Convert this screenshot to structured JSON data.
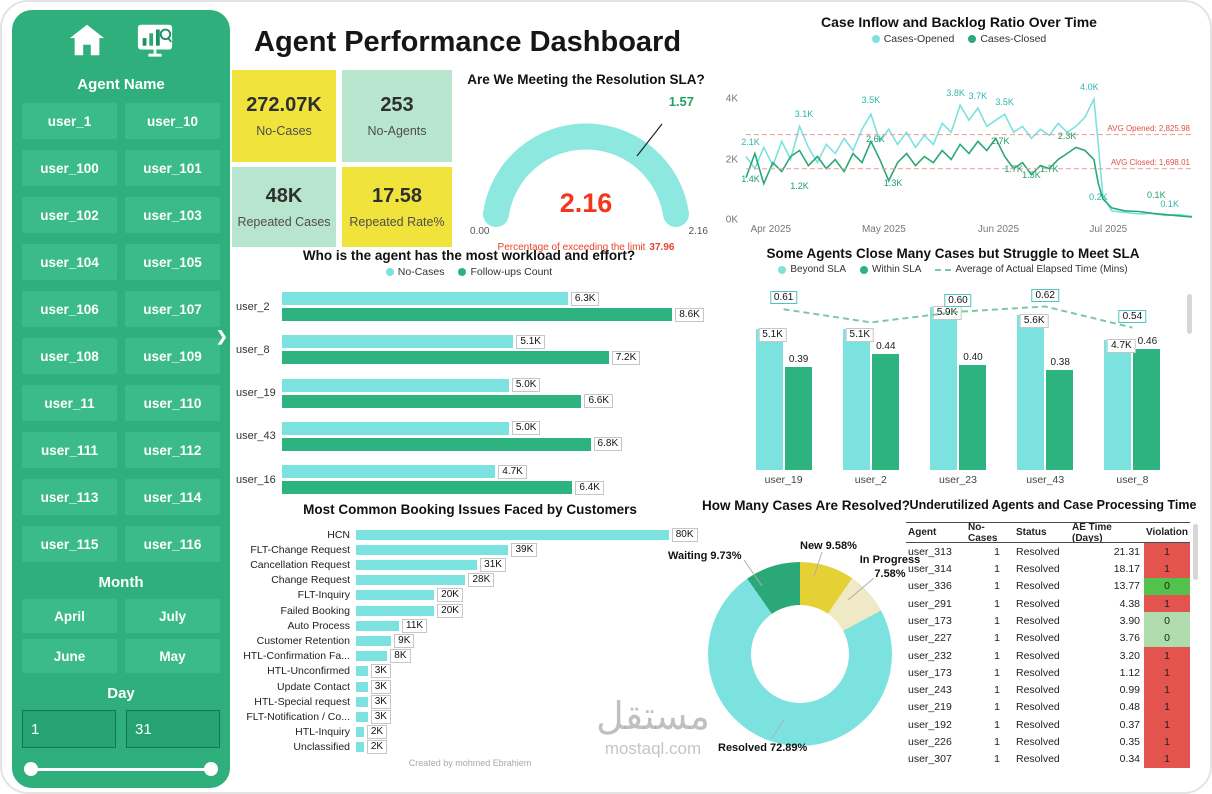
{
  "app": {
    "title": "Agent Performance Dashboard",
    "credit": "Created by mohmed Ebrahiem",
    "watermark_arabic": "مستقل",
    "watermark_latin": "mostaql.com"
  },
  "icons": {
    "collapse": "❯"
  },
  "colors": {
    "sidebar_green": "#2EAF7C",
    "button_green": "#3ABB87",
    "teal": "#7CE2DF",
    "green": "#2AA878",
    "bar_green": "#2CB380",
    "yellow": "#F0E33C",
    "mint": "#B7E5CE",
    "gauge_arc": "#8DE8E0",
    "red_value": "#F4371C",
    "avg_line": "#F09A93",
    "avg_label": "#E05045",
    "sla_line": "#7CC9A0",
    "table_red": "#E4544F",
    "table_green": "#52C24C",
    "table_lightgreen": "#AEDCAC",
    "cream": "#EFE9C5"
  },
  "sidebar": {
    "agent_header": "Agent Name",
    "agents": [
      "user_1",
      "user_10",
      "user_100",
      "user_101",
      "user_102",
      "user_103",
      "user_104",
      "user_105",
      "user_106",
      "user_107",
      "user_108",
      "user_109",
      "user_11",
      "user_110",
      "user_111",
      "user_112",
      "user_113",
      "user_114",
      "user_115",
      "user_116"
    ],
    "month_header": "Month",
    "months": [
      "April",
      "July",
      "June",
      "May"
    ],
    "day_header": "Day",
    "day_from": "1",
    "day_to": "31"
  },
  "kpis": [
    {
      "value": "272.07K",
      "label": "No-Cases",
      "style": "yellow"
    },
    {
      "value": "253",
      "label": "No-Agents",
      "style": "mint"
    },
    {
      "value": "48K",
      "label": "Repeated Cases",
      "style": "mint"
    },
    {
      "value": "17.58",
      "label": "Repeated Rate%",
      "style": "yellow"
    }
  ],
  "chart_data": [
    {
      "id": "sla_gauge",
      "type": "gauge",
      "title": "Are We Meeting the Resolution SLA?",
      "value": "2.16",
      "min": "0.00",
      "max": "2.16",
      "target": "1.57",
      "note": "Percentage of exceeding the limit",
      "note_value": "37.96"
    },
    {
      "id": "case_inflow",
      "type": "line",
      "title": "Case Inflow and Backlog Ratio Over Time",
      "legend": [
        "Cases-Opened",
        "Cases-Closed"
      ],
      "ymax": 4.3,
      "y_ticks": [
        "4K",
        "2K",
        "0K"
      ],
      "y_tick_values": [
        4,
        2,
        0
      ],
      "x_ticks": [
        "Apr 2025",
        "May 2025",
        "Jun 2025",
        "Jul 2025"
      ],
      "x_tick_pos": [
        1,
        26,
        52,
        77
      ],
      "avg_lines": [
        {
          "label": "AVG Opened: 2,825.98",
          "value": 2.826
        },
        {
          "label": "AVG Closed: 1,698.01",
          "value": 1.698
        }
      ],
      "series": [
        {
          "name": "Cases-Opened",
          "x": [
            0,
            2,
            4,
            6,
            8,
            10,
            12,
            14,
            16,
            18,
            20,
            22,
            24,
            26,
            28,
            30,
            32,
            34,
            36,
            38,
            40,
            42,
            44,
            46,
            48,
            50,
            52,
            54,
            56,
            58,
            60,
            62,
            64,
            66,
            68,
            70,
            72,
            74,
            76,
            78,
            79,
            80,
            82,
            85,
            88,
            91,
            94,
            97,
            100
          ],
          "values": [
            2.1,
            1.7,
            2.4,
            1.8,
            2.6,
            2.0,
            3.1,
            2.4,
            1.9,
            2.5,
            2.2,
            2.7,
            2.3,
            3.0,
            3.5,
            2.6,
            3.0,
            2.5,
            2.9,
            2.4,
            2.8,
            2.5,
            3.2,
            2.9,
            3.8,
            3.3,
            3.7,
            3.1,
            3.3,
            3.5,
            2.9,
            3.1,
            2.7,
            3.0,
            2.8,
            3.2,
            2.9,
            3.1,
            3.4,
            4.0,
            2.5,
            0.8,
            0.3,
            0.25,
            0.2,
            0.22,
            0.15,
            0.18,
            0.12
          ]
        },
        {
          "name": "Cases-Closed",
          "x": [
            0,
            2,
            4,
            6,
            8,
            10,
            12,
            14,
            16,
            18,
            20,
            22,
            24,
            26,
            28,
            30,
            32,
            34,
            36,
            38,
            40,
            42,
            44,
            46,
            48,
            50,
            52,
            54,
            56,
            58,
            60,
            62,
            64,
            66,
            68,
            70,
            72,
            74,
            76,
            78,
            79,
            80,
            82,
            85,
            88,
            91,
            94,
            97,
            100
          ],
          "values": [
            1.4,
            2.2,
            1.2,
            1.9,
            1.6,
            2.1,
            2.3,
            1.8,
            2.1,
            1.7,
            2.0,
            1.6,
            2.2,
            1.9,
            2.6,
            2.0,
            1.3,
            1.9,
            2.2,
            1.8,
            2.1,
            1.9,
            2.3,
            2.0,
            2.5,
            2.2,
            2.6,
            2.3,
            2.7,
            2.1,
            1.7,
            1.9,
            1.5,
            1.8,
            1.7,
            2.0,
            2.2,
            2.4,
            2.3,
            2.0,
            1.2,
            0.7,
            0.4,
            0.3,
            0.28,
            0.22,
            0.18,
            0.14,
            0.1
          ]
        }
      ],
      "point_labels": [
        {
          "text": "2.1K",
          "x": 1,
          "v": 2.4,
          "series": "opened"
        },
        {
          "text": "3.1K",
          "x": 13,
          "v": 3.35,
          "series": "opened"
        },
        {
          "text": "3.5K",
          "x": 28,
          "v": 3.8,
          "series": "opened"
        },
        {
          "text": "3.8K",
          "x": 47,
          "v": 4.05,
          "series": "opened"
        },
        {
          "text": "3.7K",
          "x": 52,
          "v": 3.95,
          "series": "opened"
        },
        {
          "text": "3.5K",
          "x": 58,
          "v": 3.75,
          "series": "opened"
        },
        {
          "text": "4.0K",
          "x": 77,
          "v": 4.25,
          "series": "opened"
        },
        {
          "text": "0.2K",
          "x": 79,
          "v": 0.6,
          "series": "opened"
        },
        {
          "text": "0.1K",
          "x": 95,
          "v": 0.38,
          "series": "opened"
        },
        {
          "text": "1.4K",
          "x": 1,
          "v": 1.18,
          "series": "closed"
        },
        {
          "text": "1.2K",
          "x": 12,
          "v": 0.95,
          "series": "closed"
        },
        {
          "text": "2.6K",
          "x": 29,
          "v": 2.5,
          "series": "closed"
        },
        {
          "text": "1.3K",
          "x": 33,
          "v": 1.05,
          "series": "closed"
        },
        {
          "text": "2.7K",
          "x": 57,
          "v": 2.45,
          "series": "closed"
        },
        {
          "text": "1.7K",
          "x": 60,
          "v": 1.52,
          "series": "closed"
        },
        {
          "text": "1.5K",
          "x": 64,
          "v": 1.32,
          "series": "closed"
        },
        {
          "text": "1.7K",
          "x": 68,
          "v": 1.52,
          "series": "closed"
        },
        {
          "text": "2.3K",
          "x": 72,
          "v": 2.62,
          "series": "closed"
        },
        {
          "text": "0.1K",
          "x": 92,
          "v": 0.65,
          "series": "closed"
        }
      ]
    },
    {
      "id": "workload",
      "type": "bar",
      "title": "Who is the agent has the most workload and effort?",
      "legend": [
        "No-Cases",
        "Follow-ups Count"
      ],
      "categories": [
        "user_2",
        "user_8",
        "user_19",
        "user_43",
        "user_16"
      ],
      "series": [
        {
          "name": "No-Cases",
          "values": [
            6300,
            5100,
            5000,
            5000,
            4700
          ],
          "labels": [
            "6.3K",
            "5.1K",
            "5.0K",
            "5.0K",
            "4.7K"
          ]
        },
        {
          "name": "Follow-ups Count",
          "values": [
            8600,
            7200,
            6600,
            6800,
            6400
          ],
          "labels": [
            "8.6K",
            "7.2K",
            "6.6K",
            "6.8K",
            "6.4K"
          ]
        }
      ],
      "xmax": 9300
    },
    {
      "id": "sla_agents",
      "type": "bar-line",
      "title": "Some Agents Close Many Cases but Struggle to Meet SLA",
      "legend": [
        "Beyond SLA",
        "Within SLA",
        "Average of Actual Elapsed Time (Mins)"
      ],
      "categories": [
        "user_19",
        "user_2",
        "user_23",
        "user_43",
        "user_8"
      ],
      "beyond_sla": {
        "labels": [
          "5.1K",
          "5.1K",
          "5.9K",
          "5.6K",
          "4.7K"
        ],
        "values": [
          5.1,
          5.1,
          5.9,
          5.6,
          4.7
        ],
        "max": 6.3
      },
      "within_sla": {
        "labels": [
          "0.39",
          "0.44",
          "0.40",
          "0.38",
          "0.46"
        ],
        "values": [
          0.39,
          0.44,
          0.4,
          0.38,
          0.46
        ],
        "max": 0.66
      },
      "avg_elapsed_line": {
        "labels": [
          "0.61",
          "",
          "0.60",
          "0.62",
          "0.54"
        ],
        "values": [
          0.61,
          0.56,
          0.6,
          0.62,
          0.54
        ],
        "max": 0.66
      }
    },
    {
      "id": "booking_issues",
      "type": "bar",
      "title": "Most Common Booking Issues Faced by Customers",
      "categories": [
        "HCN",
        "FLT-Change Request",
        "Cancellation Request",
        "Change Request",
        "FLT-Inquiry",
        "Failed Booking",
        "Auto Process",
        "Customer Retention",
        "HTL-Confirmation Fa...",
        "HTL-Unconfirmed",
        "Update Contact",
        "HTL-Special request",
        "FLT-Notification / Co...",
        "HTL-Inquiry",
        "Unclassified"
      ],
      "values": [
        80,
        39,
        31,
        28,
        20,
        20,
        11,
        9,
        8,
        3,
        3,
        3,
        3,
        2,
        2
      ],
      "labels": [
        "80K",
        "39K",
        "31K",
        "28K",
        "20K",
        "20K",
        "11K",
        "9K",
        "8K",
        "3K",
        "3K",
        "3K",
        "3K",
        "2K",
        "2K"
      ],
      "xmax": 88
    },
    {
      "id": "resolved_pie",
      "type": "pie",
      "title": "How Many Cases Are Resolved?",
      "slices": [
        {
          "label": "Resolved",
          "pct": 72.89,
          "text": "Resolved 72.89%",
          "color": "#7CE2DF"
        },
        {
          "label": "Waiting",
          "pct": 9.73,
          "text": "Waiting 9.73%",
          "color": "#2AA878"
        },
        {
          "label": "New",
          "pct": 9.58,
          "text": "New 9.58%",
          "color": "#E5D134"
        },
        {
          "label": "In Progress",
          "pct": 7.58,
          "text": "In Progress 7.58%",
          "color": "#EFE9C5"
        }
      ]
    },
    {
      "id": "agent_table",
      "type": "table",
      "title": "Underutilized Agents and Case Processing Time",
      "columns": [
        "Agent",
        "No-Cases",
        "Status",
        "AE Time (Days)",
        "Violation"
      ],
      "rows": [
        [
          "user_313",
          "1",
          "Resolved",
          "21.31",
          "1",
          "red"
        ],
        [
          "user_314",
          "1",
          "Resolved",
          "18.17",
          "1",
          "red"
        ],
        [
          "user_336",
          "1",
          "Resolved",
          "13.77",
          "0",
          "green"
        ],
        [
          "user_291",
          "1",
          "Resolved",
          "4.38",
          "1",
          "red"
        ],
        [
          "user_173",
          "1",
          "Resolved",
          "3.90",
          "0",
          "lightgreen"
        ],
        [
          "user_227",
          "1",
          "Resolved",
          "3.76",
          "0",
          "lightgreen"
        ],
        [
          "user_232",
          "1",
          "Resolved",
          "3.20",
          "1",
          "red"
        ],
        [
          "user_173",
          "1",
          "Resolved",
          "1.12",
          "1",
          "red"
        ],
        [
          "user_243",
          "1",
          "Resolved",
          "0.99",
          "1",
          "red"
        ],
        [
          "user_219",
          "1",
          "Resolved",
          "0.48",
          "1",
          "red"
        ],
        [
          "user_192",
          "1",
          "Resolved",
          "0.37",
          "1",
          "red"
        ],
        [
          "user_226",
          "1",
          "Resolved",
          "0.35",
          "1",
          "red"
        ],
        [
          "user_307",
          "1",
          "Resolved",
          "0.34",
          "1",
          "red"
        ]
      ]
    }
  ]
}
